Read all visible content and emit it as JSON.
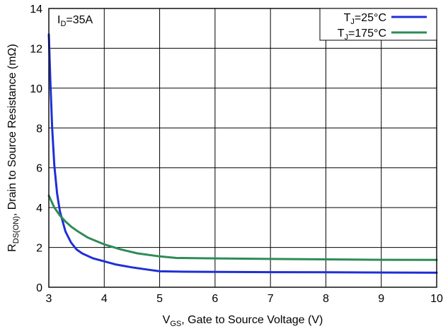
{
  "chart_data": {
    "type": "line",
    "xlabel": {
      "main": "V",
      "sub": "GS",
      "rest": ", Gate to Source Voltage (V)"
    },
    "ylabel": {
      "main": "R",
      "sub": "DS(ON)",
      "rest": ", Drain to Source Resistance (mΩ)"
    },
    "annotation": {
      "main": "I",
      "sub": "D",
      "rest": "=35A"
    },
    "xlim": [
      3,
      10
    ],
    "ylim": [
      0,
      14
    ],
    "xticks": [
      "3",
      "4",
      "5",
      "6",
      "7",
      "8",
      "9",
      "10"
    ],
    "yticks": [
      "0",
      "2",
      "4",
      "6",
      "8",
      "10",
      "12",
      "14"
    ],
    "grid": true,
    "legend_position": "top-right",
    "series": [
      {
        "name": "T_J=25°C",
        "label": {
          "main": "T",
          "sub": "J",
          "rest": "=25°C"
        },
        "color": "#1f2fd6",
        "x": [
          3.0,
          3.03,
          3.06,
          3.1,
          3.15,
          3.2,
          3.3,
          3.4,
          3.5,
          3.6,
          3.8,
          4.0,
          4.2,
          4.5,
          4.8,
          5.0,
          5.5,
          6.0,
          7.0,
          8.0,
          9.0,
          10.0
        ],
        "y": [
          12.7,
          10.2,
          8.0,
          6.1,
          4.7,
          3.8,
          2.8,
          2.25,
          1.9,
          1.7,
          1.45,
          1.3,
          1.15,
          1.0,
          0.88,
          0.8,
          0.78,
          0.77,
          0.76,
          0.75,
          0.74,
          0.73
        ]
      },
      {
        "name": "T_J=175°C",
        "label": {
          "main": "T",
          "sub": "J",
          "rest": "=175°C"
        },
        "color": "#2e8b57",
        "x": [
          3.0,
          3.1,
          3.2,
          3.3,
          3.4,
          3.5,
          3.7,
          4.0,
          4.3,
          4.6,
          5.0,
          5.3,
          6.0,
          7.0,
          8.0,
          9.0,
          10.0
        ],
        "y": [
          4.6,
          4.0,
          3.6,
          3.3,
          3.05,
          2.85,
          2.5,
          2.15,
          1.9,
          1.7,
          1.55,
          1.47,
          1.45,
          1.42,
          1.4,
          1.38,
          1.37
        ]
      }
    ]
  }
}
